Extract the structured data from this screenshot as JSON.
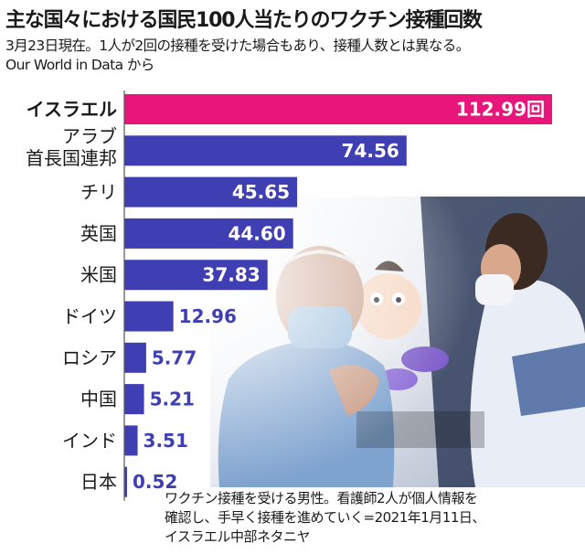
{
  "header": {
    "title": "主な国々における国民100人当たりのワクチン接種回数",
    "subtitle_lines": [
      "3月23日現在。1人が2回の接種を受けた場合もあり、接種人数とは異なる。",
      "Our World in Data から"
    ]
  },
  "caption": {
    "lines": [
      "ワクチン接種を受ける男性。看護師2人が個人情報を",
      "確認し、手早く接種を進めていく=2021年1月11日、",
      "イスラエル中部ネタニヤ"
    ]
  },
  "colors": {
    "highlight": "#e8157a",
    "bar": "#3f3fb3",
    "highlight_label": "#e8157a",
    "label": "#1a1a1a"
  },
  "chart_data": {
    "type": "bar",
    "orientation": "horizontal",
    "categories": [
      [
        "イスラエル"
      ],
      [
        "アラブ",
        "首長国連邦"
      ],
      [
        "チリ"
      ],
      [
        "英国"
      ],
      [
        "米国"
      ],
      [
        "ドイツ"
      ],
      [
        "ロシア"
      ],
      [
        "中国"
      ],
      [
        "インド"
      ],
      [
        "日本"
      ]
    ],
    "values": [
      112.99,
      74.56,
      45.65,
      44.6,
      37.83,
      12.96,
      5.77,
      5.21,
      3.51,
      0.52
    ],
    "value_labels": [
      "112.99回",
      "74.56",
      "45.65",
      "44.60",
      "37.83",
      "12.96",
      "5.77",
      "5.21",
      "3.51",
      "0.52"
    ],
    "highlight_index": 0,
    "xlim": [
      0,
      112.99
    ]
  }
}
